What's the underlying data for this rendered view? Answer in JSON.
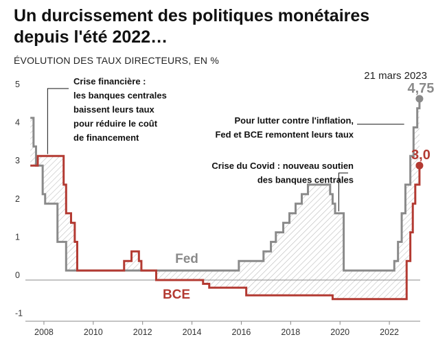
{
  "title": "Un durcissement des politiques monétaires depuis l'été 2022…",
  "subtitle": "ÉVOLUTION DES TAUX DIRECTEURS, EN %",
  "colors": {
    "fed": "#8a8a8a",
    "bce": "#b33a32",
    "hatch": "#bdbdbd",
    "axis": "#888888",
    "text": "#111111"
  },
  "chart_data": {
    "type": "line",
    "xlabel": "",
    "ylabel": "",
    "xlim": [
      2007.25,
      2023.25
    ],
    "ylim": [
      -1,
      5.3
    ],
    "grid": false,
    "x_ticks": [
      2008,
      2010,
      2012,
      2014,
      2016,
      2018,
      2020,
      2022
    ],
    "y_ticks": [
      5,
      4,
      3,
      2,
      1,
      0,
      -1
    ],
    "date_label": "21 mars 2023",
    "series": [
      {
        "name": "Fed",
        "color": "#8a8a8a",
        "end_label": "4,75",
        "x": [
          2007.45,
          2007.58,
          2007.68,
          2007.75,
          2007.95,
          2008.05,
          2008.15,
          2008.25,
          2008.35,
          2008.55,
          2008.7,
          2008.9,
          2015.9,
          2016.9,
          2017.2,
          2017.4,
          2017.7,
          2017.95,
          2018.2,
          2018.45,
          2018.7,
          2018.95,
          2019.55,
          2019.6,
          2019.7,
          2019.8,
          2020.15,
          2022.2,
          2022.35,
          2022.5,
          2022.65,
          2022.85,
          2022.98,
          2023.13,
          2023.22
        ],
        "y": [
          4.25,
          3.5,
          3.0,
          3.0,
          2.25,
          2.0,
          2.0,
          2.0,
          2.0,
          1.0,
          1.0,
          0.25,
          0.5,
          0.75,
          1.0,
          1.25,
          1.5,
          1.75,
          2.0,
          2.25,
          2.5,
          2.5,
          2.5,
          2.25,
          2.0,
          1.75,
          0.25,
          0.5,
          1.0,
          1.75,
          2.5,
          3.25,
          4.0,
          4.5,
          4.75
        ]
      },
      {
        "name": "BCE",
        "color": "#b33a32",
        "end_label": "3,0",
        "x": [
          2007.45,
          2007.75,
          2008.5,
          2008.8,
          2008.9,
          2009.1,
          2009.25,
          2009.35,
          2010.95,
          2011.25,
          2011.55,
          2011.85,
          2011.95,
          2012.55,
          2013.35,
          2013.85,
          2014.45,
          2014.7,
          2016.2,
          2019.7,
          2022.55,
          2022.7,
          2022.85,
          2022.95,
          2023.05,
          2023.22
        ],
        "y": [
          3.0,
          3.25,
          3.25,
          2.5,
          1.75,
          1.5,
          1.0,
          0.25,
          0.25,
          0.5,
          0.75,
          0.5,
          0.25,
          0.0,
          0.0,
          0.0,
          -0.1,
          -0.2,
          -0.4,
          -0.5,
          -0.5,
          0.5,
          1.25,
          2.0,
          2.5,
          3.0
        ]
      }
    ],
    "annotations": [
      {
        "id": "crisis2008",
        "lines": [
          "Crise financière :",
          "les banques centrales",
          "baissent leurs taux",
          "pour réduire le coût",
          "de financement"
        ],
        "x": 2008.15,
        "y": 3.3
      },
      {
        "id": "covid",
        "lines": [
          "Crise du Covid : nouveau soutien",
          "des banques centrales"
        ],
        "x": 2019.95,
        "y": 1.8
      },
      {
        "id": "inflation",
        "lines": [
          "Pour lutter contre l'inflation,",
          "Fed et BCE remontent leurs taux"
        ],
        "x": 2022.6,
        "y": 4.0
      }
    ]
  }
}
